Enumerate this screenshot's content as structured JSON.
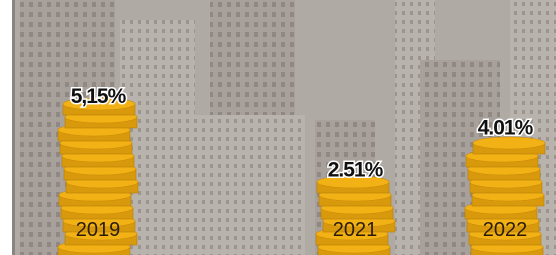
{
  "chart_data": {
    "type": "bar",
    "categories": [
      "2019",
      "2021",
      "2022"
    ],
    "values": [
      5.15,
      2.51,
      4.01
    ],
    "value_labels": [
      "5,15%",
      "2.51%",
      "4.01%"
    ],
    "color": "#f2b215"
  }
}
